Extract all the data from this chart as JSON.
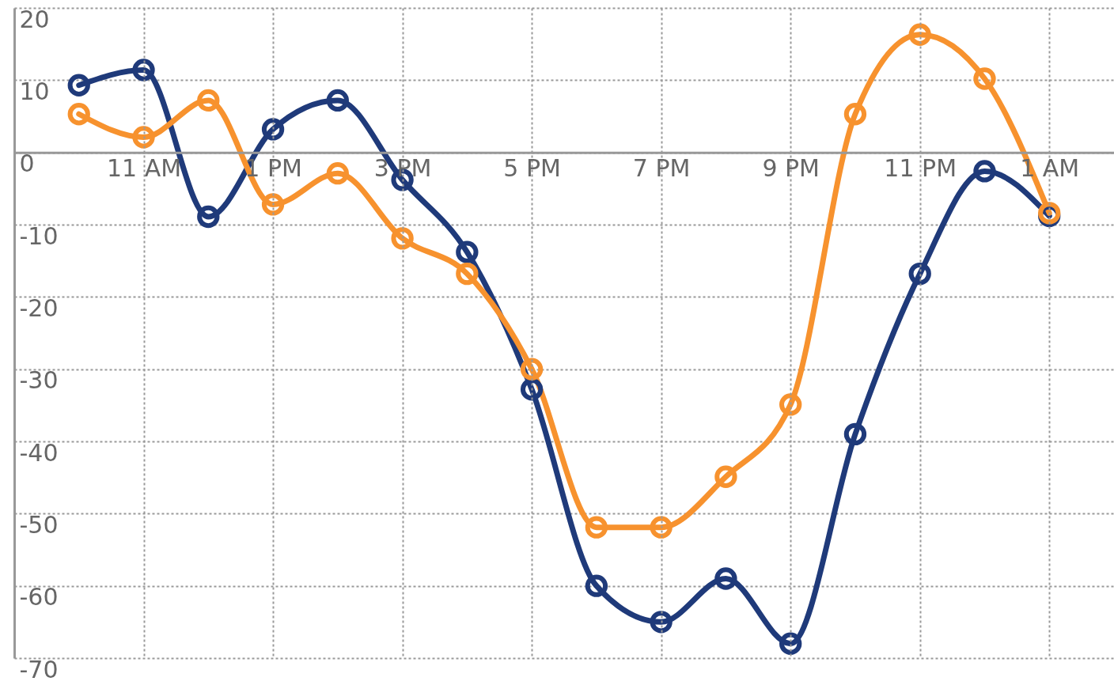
{
  "chart_data": {
    "type": "line",
    "categories": [
      null,
      "11 AM",
      null,
      "1 PM",
      null,
      "3 PM",
      null,
      "5 PM",
      null,
      "7 PM",
      null,
      "9 PM",
      null,
      "11 PM",
      null,
      "1 AM"
    ],
    "series": [
      {
        "color": "#1f3a7a",
        "values": [
          9.3,
          11.4,
          -8.9,
          3.2,
          7.2,
          -3.8,
          -13.8,
          -32.8,
          -60,
          -65,
          -59,
          -68,
          -39,
          -16.8,
          -2.6,
          -8.8
        ]
      },
      {
        "color": "#f7922e",
        "values": [
          5.3,
          2.1,
          7.2,
          -7.2,
          -2.9,
          -11.9,
          -16.8,
          -30,
          -51.9,
          -51.9,
          -44.9,
          -34.9,
          5.3,
          16.3,
          10.2,
          -8.4
        ]
      }
    ],
    "ylim": [
      -70,
      20
    ],
    "yticks": [
      20,
      10,
      0,
      -10,
      -20,
      -30,
      -40,
      -50,
      -60,
      -70
    ],
    "grid": true,
    "marker": "circle",
    "line_style": "solid"
  }
}
